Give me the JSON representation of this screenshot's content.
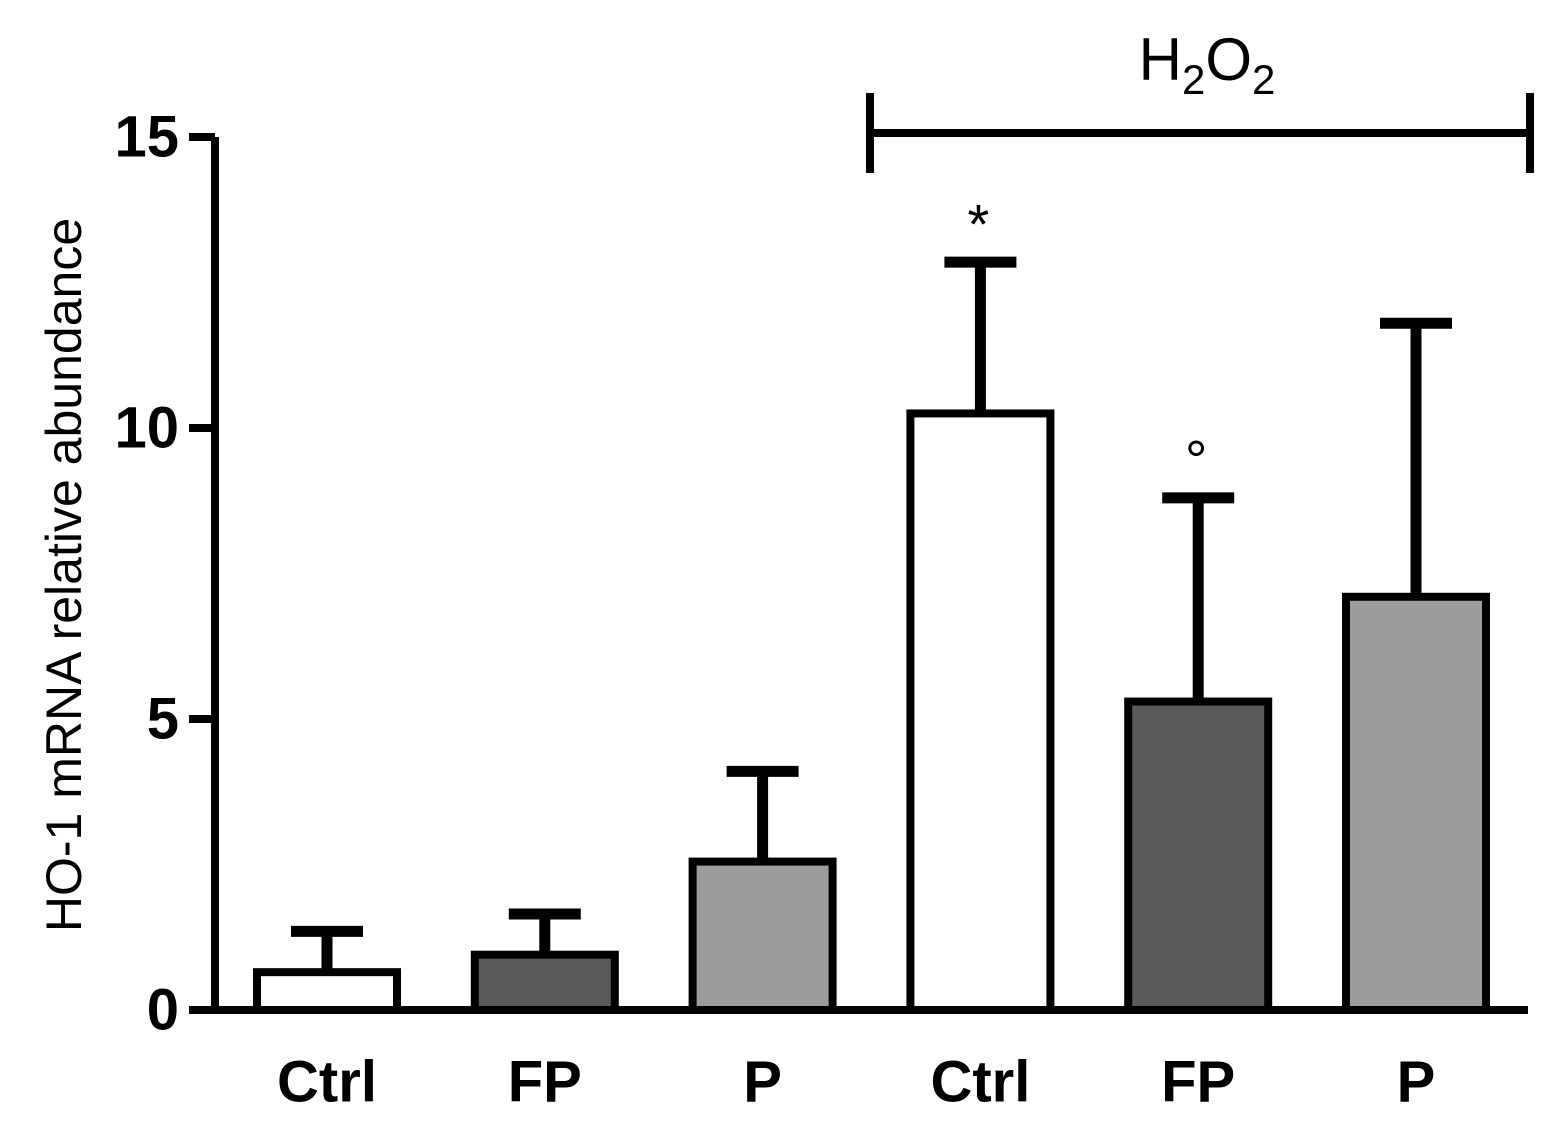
{
  "chart_data": {
    "type": "bar",
    "title": "",
    "xlabel": "",
    "ylabel": "HO-1 mRNA relative abundance",
    "ylim": [
      0,
      15
    ],
    "yticks": [
      0,
      5,
      10,
      15
    ],
    "categories": [
      "Ctrl",
      "FP",
      "P",
      "Ctrl",
      "FP",
      "P"
    ],
    "values": [
      0.65,
      0.95,
      2.55,
      10.25,
      5.3,
      7.1
    ],
    "errors": [
      0.7,
      0.7,
      1.55,
      2.6,
      3.5,
      4.7
    ],
    "colors": [
      "#ffffff",
      "#5a5a5a",
      "#9c9c9c",
      "#ffffff",
      "#5a5a5a",
      "#9c9c9c"
    ],
    "group": {
      "label_main": "H",
      "label_sub1": "2",
      "label_mid": "O",
      "label_sub2": "2",
      "start_index": 3,
      "end_index": 5
    },
    "annotations": [
      {
        "bar_index": 3,
        "text": "*"
      },
      {
        "bar_index": 4,
        "text": "°"
      }
    ],
    "grid": false,
    "legend": "none"
  }
}
